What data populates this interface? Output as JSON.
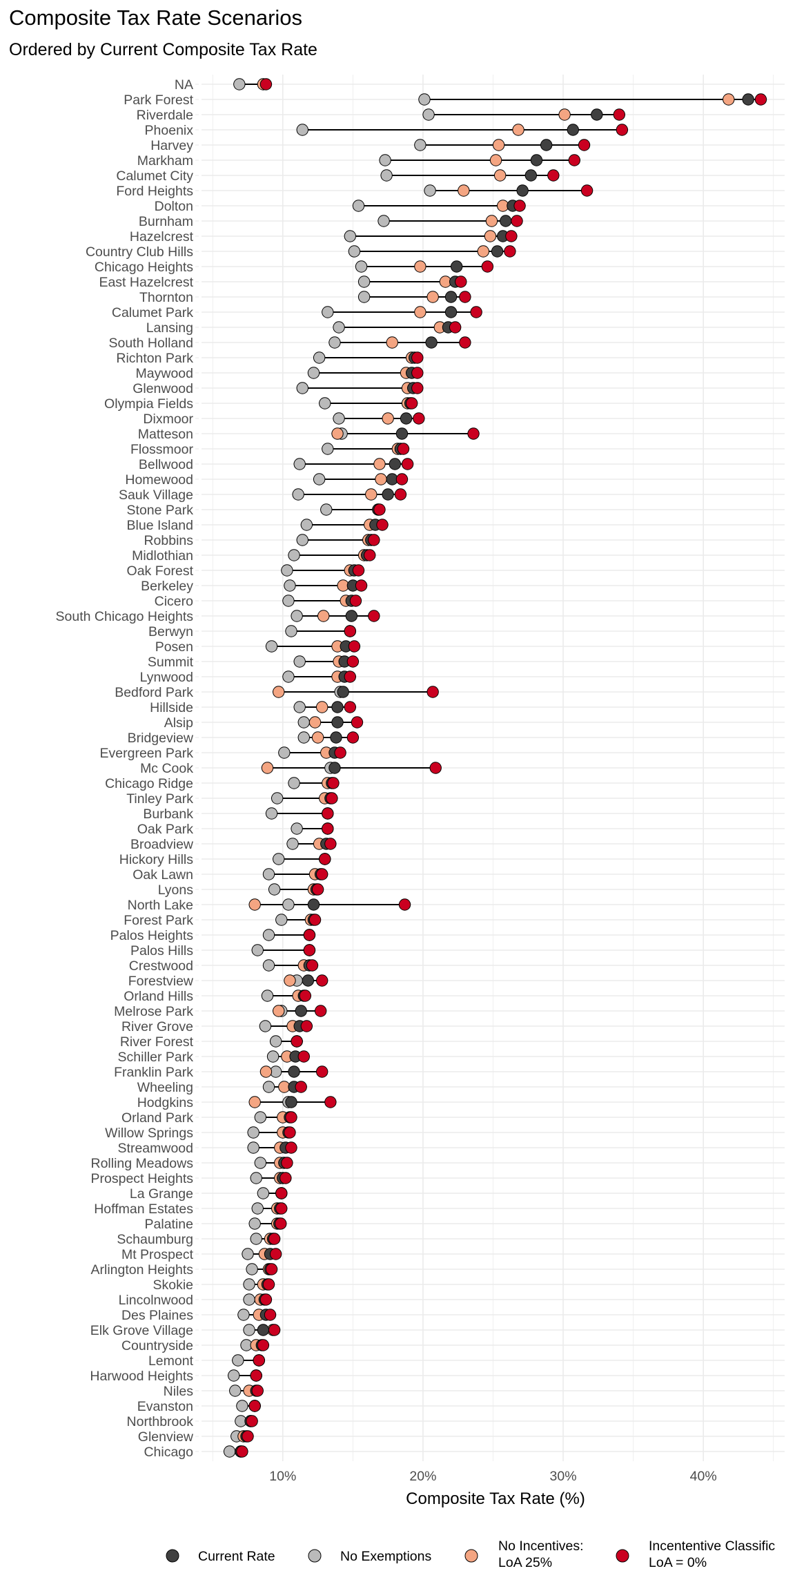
{
  "chart_data": {
    "type": "dumbbell",
    "title": "Composite Tax Rate Scenarios",
    "subtitle": "Ordered by Current Composite Tax Rate",
    "xlabel": "Composite Tax Rate (%)",
    "ylabel": "",
    "xlim": [
      4.2,
      45.8
    ],
    "xticks": [
      10,
      20,
      30,
      40
    ],
    "xtick_labels": [
      "10%",
      "20%",
      "30%",
      "40%"
    ],
    "grid": true,
    "legend_position": "bottom",
    "colors": {
      "current": "#404040",
      "no_exemptions": "#bababa",
      "no_incentives": "#f4a582",
      "incentive_classification": "#ca0020"
    },
    "legend": [
      {
        "key": "current",
        "label": [
          "Current Rate"
        ]
      },
      {
        "key": "no_exemptions",
        "label": [
          "No Exemptions"
        ]
      },
      {
        "key": "no_incentives",
        "label": [
          "No Incentives:",
          "LoA 25%"
        ]
      },
      {
        "key": "incentive_classification",
        "label": [
          "Incententive Classific",
          "LoA = 0%"
        ]
      }
    ],
    "rows": [
      {
        "name": "NA",
        "current": null,
        "no_exemptions": 6.9,
        "no_incentives": 8.6,
        "incentive_classification": 8.8
      },
      {
        "name": "Park Forest",
        "current": 43.2,
        "no_exemptions": 20.1,
        "no_incentives": 41.8,
        "incentive_classification": 44.1
      },
      {
        "name": "Riverdale",
        "current": 32.4,
        "no_exemptions": 20.4,
        "no_incentives": 30.1,
        "incentive_classification": 34.0
      },
      {
        "name": "Phoenix",
        "current": 30.7,
        "no_exemptions": 11.4,
        "no_incentives": 26.8,
        "incentive_classification": 34.2
      },
      {
        "name": "Harvey",
        "current": 28.8,
        "no_exemptions": 19.8,
        "no_incentives": 25.4,
        "incentive_classification": 31.5
      },
      {
        "name": "Markham",
        "current": 28.1,
        "no_exemptions": 17.3,
        "no_incentives": 25.2,
        "incentive_classification": 30.8
      },
      {
        "name": "Calumet City",
        "current": 27.7,
        "no_exemptions": 17.4,
        "no_incentives": 25.5,
        "incentive_classification": 29.3
      },
      {
        "name": "Ford Heights",
        "current": 27.1,
        "no_exemptions": 20.5,
        "no_incentives": 22.9,
        "incentive_classification": 31.7
      },
      {
        "name": "Dolton",
        "current": 26.4,
        "no_exemptions": 15.4,
        "no_incentives": 25.7,
        "incentive_classification": 26.9
      },
      {
        "name": "Burnham",
        "current": 25.9,
        "no_exemptions": 17.2,
        "no_incentives": 24.9,
        "incentive_classification": 26.7
      },
      {
        "name": "Hazelcrest",
        "current": 25.7,
        "no_exemptions": 14.8,
        "no_incentives": 24.8,
        "incentive_classification": 26.3
      },
      {
        "name": "Country Club Hills",
        "current": 25.3,
        "no_exemptions": 15.1,
        "no_incentives": 24.3,
        "incentive_classification": 26.2
      },
      {
        "name": "Chicago Heights",
        "current": 22.4,
        "no_exemptions": 15.6,
        "no_incentives": 19.8,
        "incentive_classification": 24.6
      },
      {
        "name": "East Hazelcrest",
        "current": 22.3,
        "no_exemptions": 15.8,
        "no_incentives": 21.6,
        "incentive_classification": 22.7
      },
      {
        "name": "Thornton",
        "current": 22.0,
        "no_exemptions": 15.8,
        "no_incentives": 20.7,
        "incentive_classification": 23.0
      },
      {
        "name": "Calumet Park",
        "current": 22.0,
        "no_exemptions": 13.2,
        "no_incentives": 19.8,
        "incentive_classification": 23.8
      },
      {
        "name": "Lansing",
        "current": 21.8,
        "no_exemptions": 14.0,
        "no_incentives": 21.2,
        "incentive_classification": 22.3
      },
      {
        "name": "South Holland",
        "current": 20.6,
        "no_exemptions": 13.7,
        "no_incentives": 17.8,
        "incentive_classification": 23.0
      },
      {
        "name": "Richton Park",
        "current": 19.4,
        "no_exemptions": 12.6,
        "no_incentives": 19.2,
        "incentive_classification": 19.6
      },
      {
        "name": "Maywood",
        "current": 19.2,
        "no_exemptions": 12.2,
        "no_incentives": 18.8,
        "incentive_classification": 19.6
      },
      {
        "name": "Glenwood",
        "current": 19.3,
        "no_exemptions": 11.4,
        "no_incentives": 18.9,
        "incentive_classification": 19.6
      },
      {
        "name": "Olympia Fields",
        "current": 19.1,
        "no_exemptions": 13.0,
        "no_incentives": 18.9,
        "incentive_classification": 19.2
      },
      {
        "name": "Dixmoor",
        "current": 18.8,
        "no_exemptions": 14.0,
        "no_incentives": 17.5,
        "incentive_classification": 19.7
      },
      {
        "name": "Matteson",
        "current": 18.5,
        "no_exemptions": 14.2,
        "no_incentives": 13.9,
        "incentive_classification": 23.6
      },
      {
        "name": "Flossmoor",
        "current": 18.4,
        "no_exemptions": 13.2,
        "no_incentives": 18.2,
        "incentive_classification": 18.6
      },
      {
        "name": "Bellwood",
        "current": 18.0,
        "no_exemptions": 11.2,
        "no_incentives": 16.9,
        "incentive_classification": 18.9
      },
      {
        "name": "Homewood",
        "current": 17.8,
        "no_exemptions": 12.6,
        "no_incentives": 17.0,
        "incentive_classification": 18.5
      },
      {
        "name": "Sauk Village",
        "current": 17.5,
        "no_exemptions": 11.1,
        "no_incentives": 16.3,
        "incentive_classification": 18.4
      },
      {
        "name": "Stone Park",
        "current": 16.8,
        "no_exemptions": 13.1,
        "no_incentives": 16.8,
        "incentive_classification": 16.9
      },
      {
        "name": "Blue Island",
        "current": 16.6,
        "no_exemptions": 11.7,
        "no_incentives": 16.2,
        "incentive_classification": 17.1
      },
      {
        "name": "Robbins",
        "current": 16.3,
        "no_exemptions": 11.4,
        "no_incentives": 16.1,
        "incentive_classification": 16.5
      },
      {
        "name": "Midlothian",
        "current": 16.0,
        "no_exemptions": 10.8,
        "no_incentives": 15.8,
        "incentive_classification": 16.2
      },
      {
        "name": "Oak Forest",
        "current": 15.1,
        "no_exemptions": 10.3,
        "no_incentives": 14.8,
        "incentive_classification": 15.4
      },
      {
        "name": "Berkeley",
        "current": 15.0,
        "no_exemptions": 10.5,
        "no_incentives": 14.3,
        "incentive_classification": 15.6
      },
      {
        "name": "Cicero",
        "current": 14.9,
        "no_exemptions": 10.4,
        "no_incentives": 14.5,
        "incentive_classification": 15.2
      },
      {
        "name": "South Chicago Heights",
        "current": 14.9,
        "no_exemptions": 11.0,
        "no_incentives": 12.9,
        "incentive_classification": 16.5
      },
      {
        "name": "Berwyn",
        "current": 14.8,
        "no_exemptions": 10.6,
        "no_incentives": 14.8,
        "incentive_classification": 14.8
      },
      {
        "name": "Posen",
        "current": 14.5,
        "no_exemptions": 9.2,
        "no_incentives": 13.9,
        "incentive_classification": 15.1
      },
      {
        "name": "Summit",
        "current": 14.4,
        "no_exemptions": 11.2,
        "no_incentives": 14.0,
        "incentive_classification": 15.0
      },
      {
        "name": "Lynwood",
        "current": 14.4,
        "no_exemptions": 10.4,
        "no_incentives": 13.9,
        "incentive_classification": 14.8
      },
      {
        "name": "Bedford Park",
        "current": 14.3,
        "no_exemptions": 14.1,
        "no_incentives": 9.7,
        "incentive_classification": 20.7
      },
      {
        "name": "Hillside",
        "current": 13.9,
        "no_exemptions": 11.2,
        "no_incentives": 12.8,
        "incentive_classification": 14.8
      },
      {
        "name": "Alsip",
        "current": 13.9,
        "no_exemptions": 11.5,
        "no_incentives": 12.3,
        "incentive_classification": 15.3
      },
      {
        "name": "Bridgeview",
        "current": 13.8,
        "no_exemptions": 11.5,
        "no_incentives": 12.5,
        "incentive_classification": 15.0
      },
      {
        "name": "Evergreen Park",
        "current": 13.7,
        "no_exemptions": 10.1,
        "no_incentives": 13.1,
        "incentive_classification": 14.1
      },
      {
        "name": "Mc Cook",
        "current": 13.7,
        "no_exemptions": 13.4,
        "no_incentives": 8.9,
        "incentive_classification": 20.9
      },
      {
        "name": "Chicago Ridge",
        "current": 13.5,
        "no_exemptions": 10.8,
        "no_incentives": 13.2,
        "incentive_classification": 13.6
      },
      {
        "name": "Tinley Park",
        "current": 13.4,
        "no_exemptions": 9.6,
        "no_incentives": 13.0,
        "incentive_classification": 13.5
      },
      {
        "name": "Burbank",
        "current": 13.2,
        "no_exemptions": 9.2,
        "no_incentives": 13.2,
        "incentive_classification": 13.2
      },
      {
        "name": "Oak Park",
        "current": 13.2,
        "no_exemptions": 11.0,
        "no_incentives": 13.2,
        "incentive_classification": 13.2
      },
      {
        "name": "Broadview",
        "current": 13.1,
        "no_exemptions": 10.7,
        "no_incentives": 12.6,
        "incentive_classification": 13.4
      },
      {
        "name": "Hickory Hills",
        "current": 13.0,
        "no_exemptions": 9.7,
        "no_incentives": 13.0,
        "incentive_classification": 13.0
      },
      {
        "name": "Oak Lawn",
        "current": 12.7,
        "no_exemptions": 9.0,
        "no_incentives": 12.3,
        "incentive_classification": 12.8
      },
      {
        "name": "Lyons",
        "current": 12.4,
        "no_exemptions": 9.4,
        "no_incentives": 12.2,
        "incentive_classification": 12.5
      },
      {
        "name": "North Lake",
        "current": 12.2,
        "no_exemptions": 10.4,
        "no_incentives": 8.0,
        "incentive_classification": 18.7
      },
      {
        "name": "Forest Park",
        "current": 12.2,
        "no_exemptions": 9.9,
        "no_incentives": 12.0,
        "incentive_classification": 12.3
      },
      {
        "name": "Palos Heights",
        "current": 11.9,
        "no_exemptions": 9.0,
        "no_incentives": 11.9,
        "incentive_classification": 11.9
      },
      {
        "name": "Palos Hills",
        "current": 11.9,
        "no_exemptions": 8.2,
        "no_incentives": 11.9,
        "incentive_classification": 11.9
      },
      {
        "name": "Crestwood",
        "current": 11.9,
        "no_exemptions": 9.0,
        "no_incentives": 11.5,
        "incentive_classification": 12.1
      },
      {
        "name": "Forestview",
        "current": 11.8,
        "no_exemptions": 11.0,
        "no_incentives": 10.5,
        "incentive_classification": 12.8
      },
      {
        "name": "Orland Hills",
        "current": 11.5,
        "no_exemptions": 8.9,
        "no_incentives": 11.1,
        "incentive_classification": 11.6
      },
      {
        "name": "Melrose Park",
        "current": 11.3,
        "no_exemptions": 9.9,
        "no_incentives": 9.7,
        "incentive_classification": 12.7
      },
      {
        "name": "River Grove",
        "current": 11.2,
        "no_exemptions": 8.75,
        "no_incentives": 10.7,
        "incentive_classification": 11.7
      },
      {
        "name": "River Forest",
        "current": 11.0,
        "no_exemptions": 9.5,
        "no_incentives": 11.0,
        "incentive_classification": 11.0
      },
      {
        "name": "Schiller Park",
        "current": 10.9,
        "no_exemptions": 9.3,
        "no_incentives": 10.3,
        "incentive_classification": 11.5
      },
      {
        "name": "Franklin Park",
        "current": 10.8,
        "no_exemptions": 9.5,
        "no_incentives": 8.8,
        "incentive_classification": 12.8
      },
      {
        "name": "Wheeling",
        "current": 10.8,
        "no_exemptions": 9.0,
        "no_incentives": 10.1,
        "incentive_classification": 11.3
      },
      {
        "name": "Hodgkins",
        "current": 10.6,
        "no_exemptions": 10.4,
        "no_incentives": 8.0,
        "incentive_classification": 13.4
      },
      {
        "name": "Orland Park",
        "current": 10.5,
        "no_exemptions": 8.4,
        "no_incentives": 10.0,
        "incentive_classification": 10.6
      },
      {
        "name": "Willow Springs",
        "current": 10.4,
        "no_exemptions": 7.9,
        "no_incentives": 10.0,
        "incentive_classification": 10.5
      },
      {
        "name": "Streamwood",
        "current": 10.2,
        "no_exemptions": 7.9,
        "no_incentives": 9.8,
        "incentive_classification": 10.6
      },
      {
        "name": "Rolling Meadows",
        "current": 10.1,
        "no_exemptions": 8.4,
        "no_incentives": 9.8,
        "incentive_classification": 10.3
      },
      {
        "name": "Prospect Heights",
        "current": 10.0,
        "no_exemptions": 8.1,
        "no_incentives": 9.8,
        "incentive_classification": 10.2
      },
      {
        "name": "La Grange",
        "current": 9.9,
        "no_exemptions": 8.6,
        "no_incentives": 9.9,
        "incentive_classification": 9.9
      },
      {
        "name": "Hoffman Estates",
        "current": 9.8,
        "no_exemptions": 8.2,
        "no_incentives": 9.6,
        "incentive_classification": 9.9
      },
      {
        "name": "Palatine",
        "current": 9.75,
        "no_exemptions": 8.0,
        "no_incentives": 9.6,
        "incentive_classification": 9.85
      },
      {
        "name": "Schaumburg",
        "current": 9.3,
        "no_exemptions": 8.1,
        "no_incentives": 9.1,
        "incentive_classification": 9.4
      },
      {
        "name": "Mt Prospect",
        "current": 9.1,
        "no_exemptions": 7.5,
        "no_incentives": 8.7,
        "incentive_classification": 9.5
      },
      {
        "name": "Arlington Heights",
        "current": 9.1,
        "no_exemptions": 7.8,
        "no_incentives": 9.0,
        "incentive_classification": 9.2
      },
      {
        "name": "Skokie",
        "current": 8.9,
        "no_exemptions": 7.6,
        "no_incentives": 8.6,
        "incentive_classification": 9.0
      },
      {
        "name": "Lincolnwood",
        "current": 8.7,
        "no_exemptions": 7.6,
        "no_incentives": 8.4,
        "incentive_classification": 8.8
      },
      {
        "name": "Des Plaines",
        "current": 8.8,
        "no_exemptions": 7.2,
        "no_incentives": 8.3,
        "incentive_classification": 9.1
      },
      {
        "name": "Elk Grove Village",
        "current": 8.6,
        "no_exemptions": 7.6,
        "no_incentives": 9.3,
        "incentive_classification": 9.4
      },
      {
        "name": "Countryside",
        "current": 8.5,
        "no_exemptions": 7.4,
        "no_incentives": 8.1,
        "incentive_classification": 8.6
      },
      {
        "name": "Lemont",
        "current": 8.3,
        "no_exemptions": 6.8,
        "no_incentives": 8.3,
        "incentive_classification": 8.3
      },
      {
        "name": "Harwood Heights",
        "current": 8.1,
        "no_exemptions": 6.5,
        "no_incentives": 8.1,
        "incentive_classification": 8.1
      },
      {
        "name": "Niles",
        "current": 8.1,
        "no_exemptions": 6.6,
        "no_incentives": 7.6,
        "incentive_classification": 8.2
      },
      {
        "name": "Evanston",
        "current": 8.0,
        "no_exemptions": 7.1,
        "no_incentives": 8.0,
        "incentive_classification": 8.0
      },
      {
        "name": "Northbrook",
        "current": 7.7,
        "no_exemptions": 7.0,
        "no_incentives": 7.7,
        "incentive_classification": 7.8
      },
      {
        "name": "Glenview",
        "current": 7.4,
        "no_exemptions": 6.7,
        "no_incentives": 7.2,
        "incentive_classification": 7.5
      },
      {
        "name": "Chicago",
        "current": 7.0,
        "no_exemptions": 6.2,
        "no_incentives": 7.0,
        "incentive_classification": 7.1
      }
    ]
  }
}
